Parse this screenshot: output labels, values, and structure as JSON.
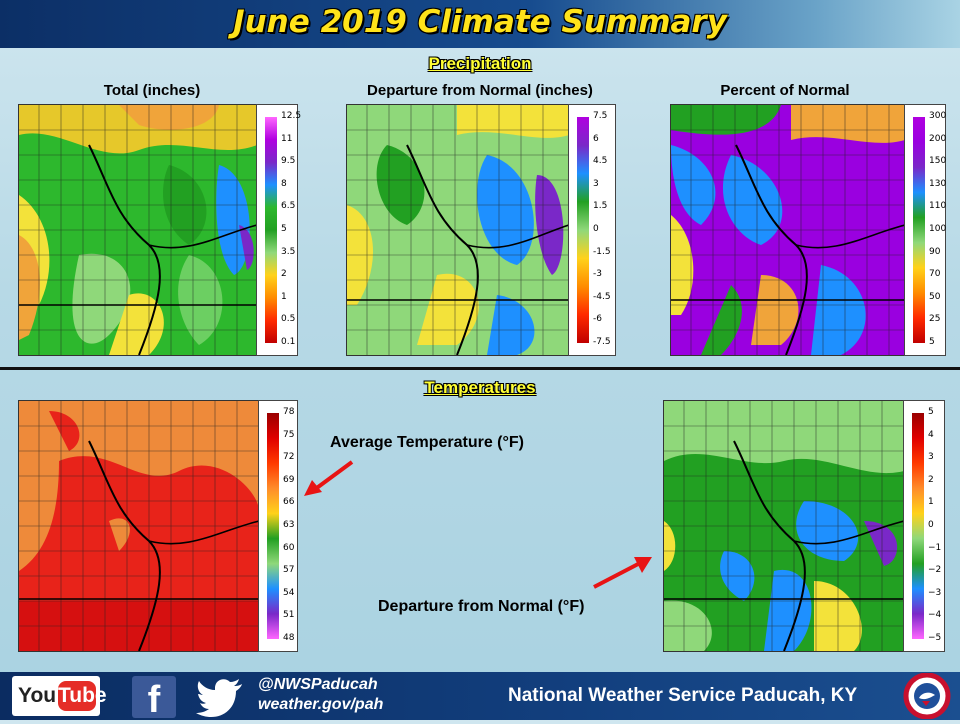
{
  "title": "June 2019 Climate Summary",
  "sections": {
    "precipitation": "Precipitation",
    "temperatures": "Temperatures"
  },
  "maps": {
    "precip_total": {
      "label": "Total (inches)",
      "legend_ticks": [
        "12.5",
        "11",
        "9.5",
        "8",
        "6.5",
        "5",
        "3.5",
        "2",
        "1",
        "0.5",
        "0.1"
      ],
      "legend_colors": [
        "#ff66ff",
        "#b000e0",
        "#7a28c8",
        "#1e90ff",
        "#2db82d",
        "#22a022",
        "#8fd87a",
        "#ffd21a",
        "#ff8c00",
        "#ff2a00",
        "#c00000"
      ]
    },
    "precip_departure": {
      "label": "Departure from Normal (inches)",
      "legend_ticks": [
        "7.5",
        "6",
        "4.5",
        "3",
        "1.5",
        "0",
        "-1.5",
        "-3",
        "-4.5",
        "-6",
        "-7.5"
      ],
      "legend_colors": [
        "#b000e0",
        "#7a28c8",
        "#1e90ff",
        "#22a022",
        "#8fd87a",
        "#ffd21a",
        "#ff8c00",
        "#ff2a00",
        "#c00000"
      ]
    },
    "percent_normal": {
      "label": "Percent of Normal",
      "legend_ticks": [
        "300",
        "200",
        "150",
        "130",
        "110",
        "100",
        "90",
        "70",
        "50",
        "25",
        "5"
      ],
      "legend_colors": [
        "#b000e0",
        "#9a00e0",
        "#7a28c8",
        "#1e90ff",
        "#22a022",
        "#8fd87a",
        "#ffd21a",
        "#ff8c00",
        "#ff2a00",
        "#c00000"
      ]
    },
    "avg_temp": {
      "label": "Average Temperature (°F)",
      "legend_ticks": [
        "78",
        "75",
        "72",
        "69",
        "66",
        "63",
        "60",
        "57",
        "54",
        "51",
        "48"
      ],
      "legend_colors": [
        "#9a0000",
        "#e00000",
        "#ff3a00",
        "#ff8c2a",
        "#ffd21a",
        "#22a022",
        "#8fd87a",
        "#1e90ff",
        "#7a28c8",
        "#ff66ff"
      ]
    },
    "temp_departure": {
      "label": "Departure from Normal (°F)",
      "legend_ticks": [
        "5",
        "4",
        "3",
        "2",
        "1",
        "0",
        "−1",
        "−2",
        "−3",
        "−4",
        "−5"
      ],
      "legend_colors": [
        "#9a0000",
        "#e00000",
        "#ff3a00",
        "#ff8c2a",
        "#ffd21a",
        "#8fd87a",
        "#22a022",
        "#1e90ff",
        "#7a28c8",
        "#ff66ff"
      ]
    }
  },
  "footer": {
    "youtube_you": "You",
    "youtube_tube": "Tube",
    "facebook_glyph": "f",
    "handle": "@NWSPaducah",
    "website": "weather.gov/pah",
    "office": "National Weather Service Paducah, KY"
  },
  "accent_colors": {
    "title": "#ffe31a",
    "section": "#ffff33",
    "arrow": "#e81414"
  }
}
